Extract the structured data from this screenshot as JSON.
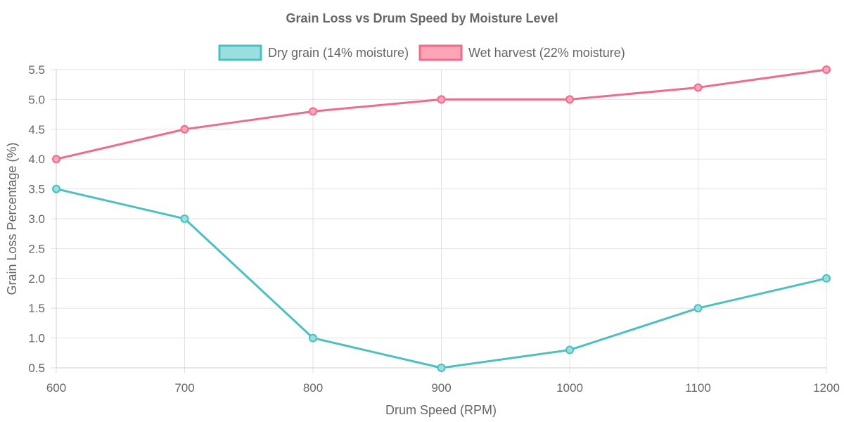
{
  "chart_data": {
    "type": "line",
    "title": "Grain Loss vs Drum Speed by Moisture Level",
    "xlabel": "Drum Speed (RPM)",
    "ylabel": "Grain Loss Percentage (%)",
    "x": [
      600,
      700,
      800,
      900,
      1000,
      1100,
      1200
    ],
    "x_ticks": [
      "600",
      "700",
      "800",
      "900",
      "1000",
      "1100",
      "1200"
    ],
    "xlim": [
      600,
      1200
    ],
    "ylim": [
      0.5,
      5.5
    ],
    "y_ticks": [
      "0.5",
      "1.0",
      "1.5",
      "2.0",
      "2.5",
      "3.0",
      "3.5",
      "4.0",
      "4.5",
      "5.0",
      "5.5"
    ],
    "grid": true,
    "legend_position": "top",
    "series": [
      {
        "name": "Dry grain (14% moisture)",
        "values": [
          3.5,
          3.0,
          1.0,
          0.5,
          0.8,
          1.5,
          2.0
        ],
        "color": "#4bc0c0",
        "fill": "#9adfdf"
      },
      {
        "name": "Wet harvest (22% moisture)",
        "values": [
          4.0,
          4.5,
          4.8,
          5.0,
          5.0,
          5.2,
          5.5
        ],
        "color": "#f06a8a",
        "fill": "#ffa3b6"
      }
    ]
  }
}
